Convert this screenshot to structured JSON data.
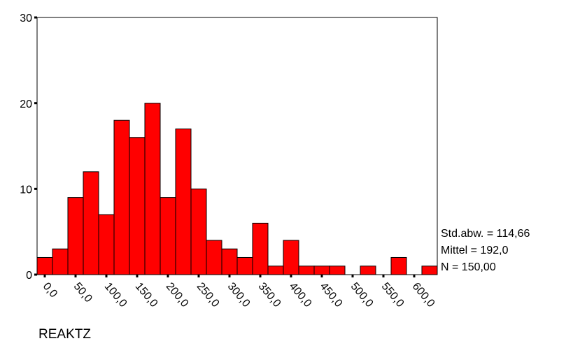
{
  "chart_data": {
    "type": "histogram",
    "x_label": "REAKTZ",
    "bins": [
      -12.5,
      12.5,
      37.5,
      62.5,
      87.5,
      112.5,
      137.5,
      162.5,
      187.5,
      212.5,
      237.5,
      262.5,
      287.5,
      312.5,
      337.5,
      362.5,
      387.5,
      412.5,
      437.5,
      462.5,
      487.5,
      512.5,
      537.5,
      562.5,
      587.5,
      612.5,
      637.5
    ],
    "values": [
      2,
      3,
      9,
      12,
      7,
      18,
      16,
      20,
      9,
      17,
      10,
      4,
      3,
      2,
      6,
      1,
      4,
      1,
      1,
      1,
      0,
      1,
      0,
      2,
      0,
      1
    ],
    "color": "#ff0000",
    "xlim": [
      -12.5,
      637.5
    ],
    "xticks": [
      {
        "value": 0,
        "label": "0,0"
      },
      {
        "value": 50,
        "label": "50,0"
      },
      {
        "value": 100,
        "label": "100,0"
      },
      {
        "value": 150,
        "label": "150,0"
      },
      {
        "value": 200,
        "label": "200,0"
      },
      {
        "value": 250,
        "label": "250,0"
      },
      {
        "value": 300,
        "label": "300,0"
      },
      {
        "value": 350,
        "label": "350,0"
      },
      {
        "value": 400,
        "label": "400,0"
      },
      {
        "value": 450,
        "label": "450,0"
      },
      {
        "value": 500,
        "label": "500,0"
      },
      {
        "value": 550,
        "label": "550,0"
      },
      {
        "value": 600,
        "label": "600,0"
      }
    ],
    "ylim": [
      0,
      30
    ],
    "yticks": [
      0,
      10,
      20,
      30
    ],
    "stats": [
      "Std.abw. = 114,66",
      "Mittel = 192,0",
      "N = 150,00"
    ]
  }
}
